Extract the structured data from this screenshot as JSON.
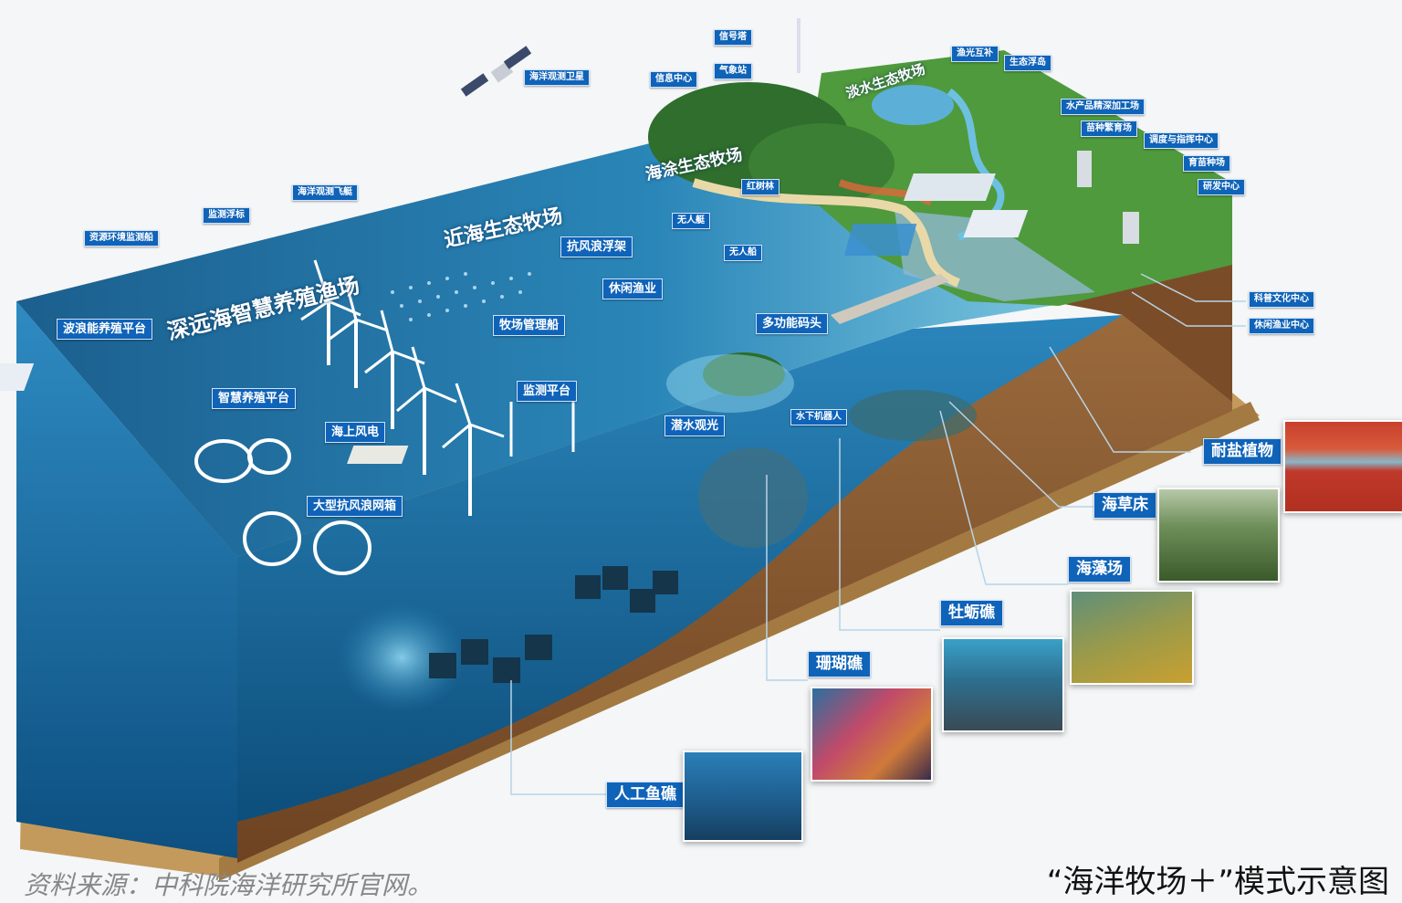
{
  "zones": {
    "far_sea": "深远海智慧养殖渔场",
    "near_sea": "近海生态牧场",
    "coastal": "海涂生态牧场",
    "freshwater": "淡水生态牧场"
  },
  "labels": {
    "satellite": "海洋观测卫星",
    "signal_tower": "信号塔",
    "weather_station": "气象站",
    "info_center": "信息中心",
    "fishery_solar": "渔光互补",
    "eco_pond": "生态浮岛",
    "processing": "水产品精深加工场",
    "seed_base": "苗种繁育场",
    "control_center": "调度与指挥中心",
    "breeding": "育苗种场",
    "rnd_center": "研发中心",
    "drone": "海洋观测飞艇",
    "monitor_buoy": "监测浮标",
    "env_monitor_ship": "资源环境监测船",
    "mangrove": "红树林",
    "usv1": "无人艇",
    "usv2": "无人船",
    "wind_raft": "抗风浪浮架",
    "leisure_fishery": "休闲渔业",
    "ranch_ship": "牧场管理船",
    "multi_pier": "多功能码头",
    "wave_platform": "波浪能养殖平台",
    "smart_platform": "智慧养殖平台",
    "offshore_wind": "海上风电",
    "monitor_platform": "监测平台",
    "dive_tour": "潜水观光",
    "uuv": "水下机器人",
    "big_cage": "大型抗风浪网箱",
    "sci_center": "科普文化中心",
    "leisure_center": "休闲渔业中心",
    "salt_plants": "耐盐植物",
    "seagrass": "海草床",
    "seaweed": "海藻场",
    "oyster_reef": "牡蛎礁",
    "coral_reef": "珊瑚礁",
    "artificial_reef": "人工鱼礁"
  },
  "source": "资料来源：中科院海洋研究所官网。",
  "caption": "“海洋牧场＋”模式示意图",
  "colors": {
    "label_bg": "#0f63b8",
    "sea_top": "#1b6fa0",
    "sea_side": "#1a6ea5",
    "soil": "#8a5a32",
    "land": "#4f9a3c"
  }
}
